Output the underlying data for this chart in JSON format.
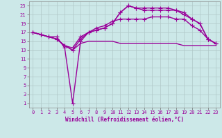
{
  "background_color": "#cce8e8",
  "grid_color": "#b0c8c8",
  "line_color": "#990099",
  "xlabel": "Windchill (Refroidissement éolien,°C)",
  "ylabel_ticks": [
    1,
    3,
    5,
    7,
    9,
    11,
    13,
    15,
    17,
    19,
    21,
    23
  ],
  "xlabel_ticks": [
    0,
    1,
    2,
    3,
    4,
    5,
    6,
    7,
    8,
    9,
    10,
    11,
    12,
    13,
    14,
    15,
    16,
    17,
    18,
    19,
    20,
    21,
    22,
    23
  ],
  "xlim": [
    -0.5,
    23.5
  ],
  "ylim": [
    0,
    24
  ],
  "series": {
    "line1_x": [
      0,
      1,
      2,
      3,
      4,
      5,
      6,
      7,
      8,
      9,
      10,
      11,
      12,
      13,
      14,
      15,
      16,
      17,
      18,
      19,
      20,
      21,
      22,
      23
    ],
    "line1_y": [
      17,
      16.5,
      16,
      15.5,
      14,
      13,
      15.5,
      17,
      17.5,
      18,
      19,
      21.5,
      23,
      22.5,
      22.5,
      22.5,
      22.5,
      22.5,
      22,
      21.5,
      20,
      19,
      15.5,
      14.5
    ],
    "line2_x": [
      0,
      1,
      2,
      3,
      4,
      5,
      6,
      7,
      8,
      9,
      10,
      11,
      12,
      13,
      14,
      15,
      16,
      17,
      18,
      19,
      20,
      21,
      22,
      23
    ],
    "line2_y": [
      17,
      16.5,
      16,
      16,
      13.5,
      1,
      15,
      17,
      17.5,
      18,
      19,
      21.5,
      23,
      22.5,
      22,
      22,
      22,
      22,
      22,
      21,
      20,
      19,
      15.5,
      14.5
    ],
    "line3_x": [
      0,
      1,
      2,
      3,
      4,
      5,
      6,
      7,
      8,
      9,
      10,
      11,
      12,
      13,
      14,
      15,
      16,
      17,
      18,
      19,
      20,
      21,
      22,
      23
    ],
    "line3_y": [
      17,
      16.5,
      16,
      15.5,
      14,
      13.5,
      16,
      17,
      18,
      18.5,
      19.5,
      20,
      20,
      20,
      20,
      20.5,
      20.5,
      20.5,
      20,
      20,
      18.5,
      17.5,
      15.5,
      14.5
    ],
    "line4_x": [
      0,
      1,
      2,
      3,
      4,
      5,
      6,
      7,
      8,
      9,
      10,
      11,
      12,
      13,
      14,
      15,
      16,
      17,
      18,
      19,
      20,
      21,
      22,
      23
    ],
    "line4_y": [
      17,
      16.5,
      16,
      15.5,
      14,
      13,
      14.5,
      15,
      15,
      15,
      15,
      14.5,
      14.5,
      14.5,
      14.5,
      14.5,
      14.5,
      14.5,
      14.5,
      14,
      14,
      14,
      14,
      14
    ]
  },
  "marker": "+",
  "markersize": 4,
  "linewidth": 1.0
}
